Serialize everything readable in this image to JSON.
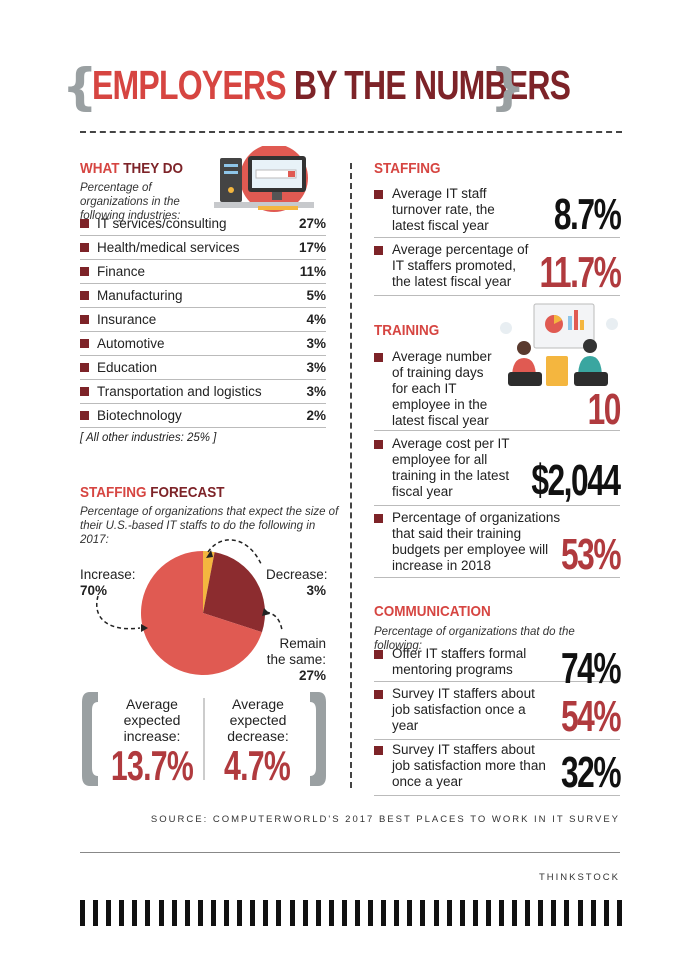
{
  "title": {
    "part1": "EMPLOYERS",
    "part2": "BY THE NUMBERS",
    "brace_left": "{",
    "brace_right": "}"
  },
  "what_they_do": {
    "title_red": "WHAT",
    "title_dark": "THEY DO",
    "note": "Percentage of organizations in the following industries:",
    "rows": [
      {
        "label": "IT services/consulting",
        "pct": "27%"
      },
      {
        "label": "Health/medical services",
        "pct": "17%"
      },
      {
        "label": "Finance",
        "pct": "11%"
      },
      {
        "label": "Manufacturing",
        "pct": "5%"
      },
      {
        "label": "Insurance",
        "pct": "4%"
      },
      {
        "label": "Automotive",
        "pct": "3%"
      },
      {
        "label": "Education",
        "pct": "3%"
      },
      {
        "label": "Transportation and logistics",
        "pct": "3%"
      },
      {
        "label": "Biotechnology",
        "pct": "2%"
      }
    ],
    "other": "[ All other industries: 25% ]"
  },
  "forecast": {
    "title_red": "STAFFING",
    "title_dark": "FORECAST",
    "note": "Percentage of organizations that expect the size of their U.S.-based IT staffs to do the following in 2017:",
    "increase_label": "Increase:",
    "increase_val": "70%",
    "decrease_label": "Decrease:",
    "decrease_val": "3%",
    "same_label1": "Remain",
    "same_label2": "the same:",
    "same_val": "27%",
    "avg_inc_label": "Average expected increase:",
    "avg_inc_val": "13.7%",
    "avg_dec_label": "Average expected decrease:",
    "avg_dec_val": "4.7%",
    "colors": {
      "increase": "#e05a52",
      "same": "#8c2c2f",
      "decrease": "#f4b63f"
    }
  },
  "chart_data": {
    "type": "pie",
    "title": "",
    "categories": [
      "Increase",
      "Remain the same",
      "Decrease"
    ],
    "values": [
      70,
      27,
      3
    ]
  },
  "staffing": {
    "title": "STAFFING",
    "items": [
      {
        "text": "Average IT staff turnover rate, the latest fiscal year",
        "value": "8.7%"
      },
      {
        "text": "Average percentage of IT staffers promoted, the latest fiscal year",
        "value": "11.7%"
      }
    ]
  },
  "training": {
    "title": "TRAINING",
    "items": [
      {
        "text": "Average number of training days for each IT employee in the latest fiscal year",
        "value": "10"
      },
      {
        "text": "Average cost per IT employee for all training in the latest fiscal year",
        "value": "$2,044"
      },
      {
        "text": "Percentage of organizations that said their training budgets per employee will increase in 2018",
        "value": "53%"
      }
    ]
  },
  "communication": {
    "title": "COMMUNICATION",
    "note": "Percentage of organizations that do the following:",
    "items": [
      {
        "text": "Offer IT staffers formal mentoring programs",
        "value": "74%"
      },
      {
        "text": "Survey IT staffers about job satisfaction once a year",
        "value": "54%"
      },
      {
        "text": "Survey IT staffers about job satisfaction more than once a year",
        "value": "32%"
      }
    ]
  },
  "source": "SOURCE: COMPUTERWORLD'S 2017 BEST PLACES TO WORK IN IT SURVEY",
  "credit": "THINKSTOCK",
  "icons": {
    "computer": "computer-illustration-icon",
    "meeting": "training-meeting-illustration-icon"
  }
}
